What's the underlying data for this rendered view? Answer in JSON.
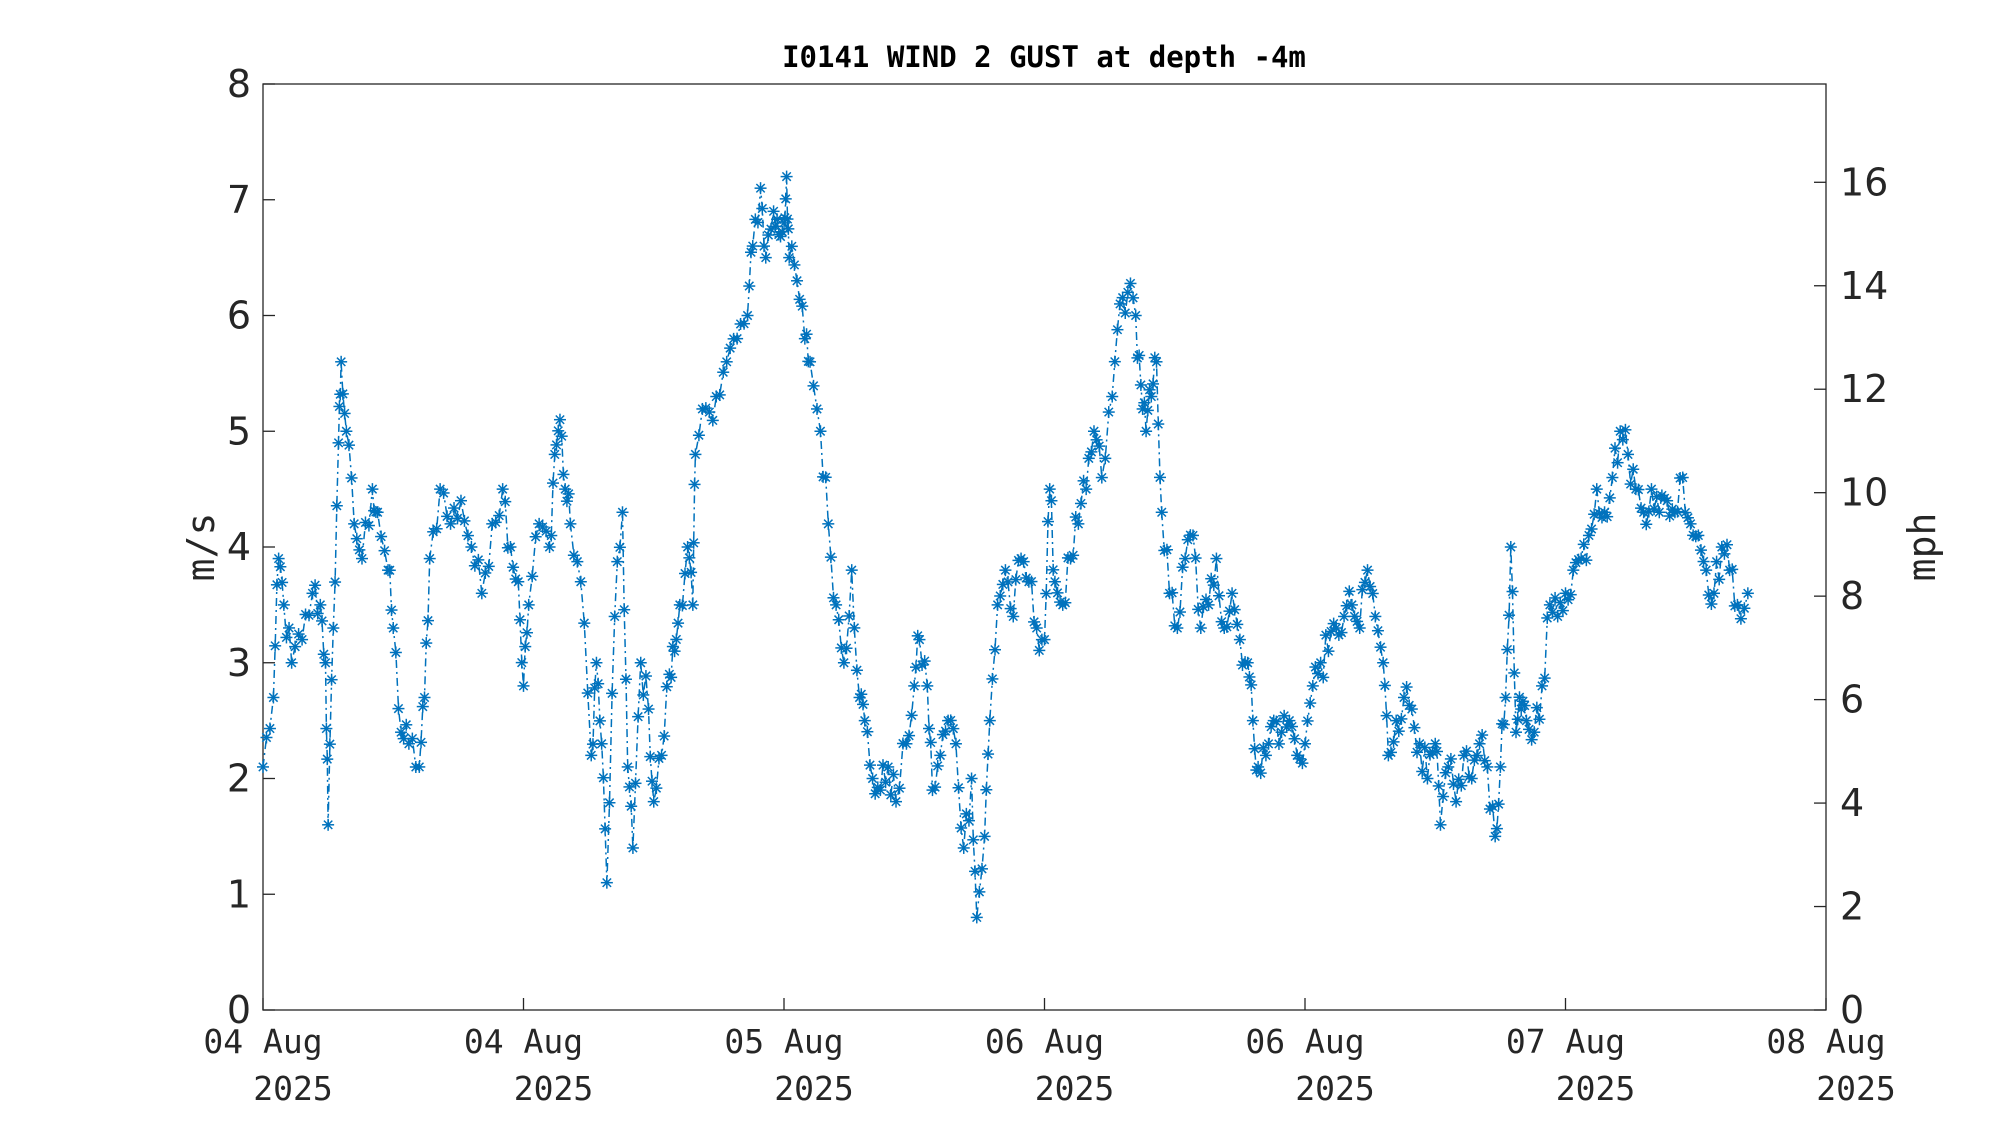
{
  "chart_data": {
    "type": "line",
    "title": "I0141 WIND 2 GUST at depth -4m",
    "ylabel": "m/s",
    "ylabel_right": "mph",
    "ylim": [
      0,
      8
    ],
    "ylim_right": [
      0,
      17.9
    ],
    "yticks": [
      "0",
      "1",
      "2",
      "3",
      "4",
      "5",
      "6",
      "7",
      "8"
    ],
    "yticks_right": [
      "0",
      "2",
      "4",
      "6",
      "8",
      "10",
      "12",
      "14",
      "16"
    ],
    "xlim_days": [
      0,
      6
    ],
    "xticks": [
      {
        "line1": "04 Aug",
        "line2": "2025"
      },
      {
        "line1": "04 Aug",
        "line2": "2025"
      },
      {
        "line1": "05 Aug",
        "line2": "2025"
      },
      {
        "line1": "06 Aug",
        "line2": "2025"
      },
      {
        "line1": "06 Aug",
        "line2": "2025"
      },
      {
        "line1": "07 Aug",
        "line2": "2025"
      },
      {
        "line1": "08 Aug",
        "line2": "2025"
      }
    ],
    "series_color": "#0072BD",
    "marker": "asterisk",
    "line_style": "dash-dot",
    "anchors": [
      [
        0.0,
        2.1
      ],
      [
        0.04,
        2.7
      ],
      [
        0.06,
        3.9
      ],
      [
        0.08,
        3.5
      ],
      [
        0.11,
        3.0
      ],
      [
        0.15,
        3.2
      ],
      [
        0.19,
        3.6
      ],
      [
        0.22,
        3.5
      ],
      [
        0.24,
        3.0
      ],
      [
        0.25,
        1.6
      ],
      [
        0.27,
        3.3
      ],
      [
        0.29,
        4.9
      ],
      [
        0.3,
        5.6
      ],
      [
        0.32,
        5.0
      ],
      [
        0.35,
        4.2
      ],
      [
        0.38,
        3.9
      ],
      [
        0.42,
        4.5
      ],
      [
        0.44,
        4.3
      ],
      [
        0.48,
        3.8
      ],
      [
        0.5,
        3.3
      ],
      [
        0.53,
        2.4
      ],
      [
        0.56,
        2.3
      ],
      [
        0.6,
        2.1
      ],
      [
        0.62,
        2.7
      ],
      [
        0.64,
        3.9
      ],
      [
        0.68,
        4.5
      ],
      [
        0.72,
        4.2
      ],
      [
        0.76,
        4.4
      ],
      [
        0.8,
        4.0
      ],
      [
        0.84,
        3.6
      ],
      [
        0.88,
        4.2
      ],
      [
        0.92,
        4.5
      ],
      [
        0.95,
        4.0
      ],
      [
        0.98,
        3.7
      ],
      [
        1.0,
        2.8
      ],
      [
        1.02,
        3.5
      ],
      [
        1.06,
        4.2
      ],
      [
        1.1,
        4.0
      ],
      [
        1.12,
        4.8
      ],
      [
        1.14,
        5.1
      ],
      [
        1.16,
        4.5
      ],
      [
        1.18,
        4.2
      ],
      [
        1.22,
        3.7
      ],
      [
        1.26,
        2.2
      ],
      [
        1.28,
        3.0
      ],
      [
        1.3,
        2.3
      ],
      [
        1.32,
        1.1
      ],
      [
        1.35,
        3.4
      ],
      [
        1.38,
        4.3
      ],
      [
        1.4,
        2.1
      ],
      [
        1.42,
        1.4
      ],
      [
        1.45,
        3.0
      ],
      [
        1.48,
        2.6
      ],
      [
        1.5,
        1.8
      ],
      [
        1.53,
        2.2
      ],
      [
        1.56,
        2.9
      ],
      [
        1.58,
        3.1
      ],
      [
        1.6,
        3.5
      ],
      [
        1.63,
        4.0
      ],
      [
        1.65,
        3.5
      ],
      [
        1.66,
        4.8
      ],
      [
        1.7,
        5.2
      ],
      [
        1.74,
        5.3
      ],
      [
        1.78,
        5.6
      ],
      [
        1.82,
        5.8
      ],
      [
        1.86,
        6.0
      ],
      [
        1.88,
        6.6
      ],
      [
        1.91,
        7.1
      ],
      [
        1.93,
        6.5
      ],
      [
        1.96,
        6.9
      ],
      [
        1.98,
        6.7
      ],
      [
        2.0,
        6.8
      ],
      [
        2.01,
        7.2
      ],
      [
        2.02,
        6.5
      ],
      [
        2.05,
        6.3
      ],
      [
        2.08,
        5.8
      ],
      [
        2.1,
        5.6
      ],
      [
        2.14,
        5.0
      ],
      [
        2.17,
        4.2
      ],
      [
        2.2,
        3.5
      ],
      [
        2.23,
        3.0
      ],
      [
        2.26,
        3.8
      ],
      [
        2.29,
        2.7
      ],
      [
        2.31,
        2.5
      ],
      [
        2.34,
        2.0
      ],
      [
        2.37,
        1.9
      ],
      [
        2.4,
        2.1
      ],
      [
        2.43,
        1.8
      ],
      [
        2.47,
        2.3
      ],
      [
        2.5,
        2.8
      ],
      [
        2.52,
        3.2
      ],
      [
        2.55,
        2.8
      ],
      [
        2.57,
        1.9
      ],
      [
        2.6,
        2.2
      ],
      [
        2.63,
        2.5
      ],
      [
        2.66,
        2.3
      ],
      [
        2.69,
        1.4
      ],
      [
        2.72,
        2.0
      ],
      [
        2.74,
        0.8
      ],
      [
        2.77,
        1.5
      ],
      [
        2.79,
        2.5
      ],
      [
        2.82,
        3.5
      ],
      [
        2.85,
        3.8
      ],
      [
        2.88,
        3.4
      ],
      [
        2.91,
        3.9
      ],
      [
        2.94,
        3.7
      ],
      [
        2.97,
        3.3
      ],
      [
        3.0,
        3.2
      ],
      [
        3.02,
        4.5
      ],
      [
        3.04,
        3.7
      ],
      [
        3.07,
        3.5
      ],
      [
        3.1,
        3.9
      ],
      [
        3.13,
        4.2
      ],
      [
        3.16,
        4.5
      ],
      [
        3.19,
        5.0
      ],
      [
        3.22,
        4.6
      ],
      [
        3.26,
        5.3
      ],
      [
        3.29,
        6.1
      ],
      [
        3.32,
        6.2
      ],
      [
        3.35,
        6.0
      ],
      [
        3.37,
        5.4
      ],
      [
        3.39,
        5.0
      ],
      [
        3.41,
        5.3
      ],
      [
        3.43,
        5.6
      ],
      [
        3.45,
        4.3
      ],
      [
        3.48,
        3.6
      ],
      [
        3.51,
        3.3
      ],
      [
        3.54,
        3.9
      ],
      [
        3.57,
        4.1
      ],
      [
        3.6,
        3.3
      ],
      [
        3.63,
        3.5
      ],
      [
        3.66,
        3.9
      ],
      [
        3.69,
        3.3
      ],
      [
        3.72,
        3.6
      ],
      [
        3.75,
        3.2
      ],
      [
        3.78,
        3.0
      ],
      [
        3.8,
        2.5
      ],
      [
        3.82,
        2.1
      ],
      [
        3.85,
        2.2
      ],
      [
        3.88,
        2.5
      ],
      [
        3.91,
        2.4
      ],
      [
        3.94,
        2.5
      ],
      [
        3.97,
        2.2
      ],
      [
        4.0,
        2.3
      ],
      [
        4.03,
        2.8
      ],
      [
        4.06,
        3.0
      ],
      [
        4.09,
        3.1
      ],
      [
        4.12,
        3.3
      ],
      [
        4.15,
        3.4
      ],
      [
        4.18,
        3.5
      ],
      [
        4.21,
        3.3
      ],
      [
        4.24,
        3.8
      ],
      [
        4.27,
        3.4
      ],
      [
        4.3,
        3.0
      ],
      [
        4.32,
        2.2
      ],
      [
        4.35,
        2.5
      ],
      [
        4.38,
        2.7
      ],
      [
        4.41,
        2.6
      ],
      [
        4.44,
        2.3
      ],
      [
        4.47,
        2.0
      ],
      [
        4.5,
        2.3
      ],
      [
        4.52,
        1.6
      ],
      [
        4.55,
        2.1
      ],
      [
        4.58,
        1.8
      ],
      [
        4.61,
        2.2
      ],
      [
        4.64,
        2.0
      ],
      [
        4.67,
        2.3
      ],
      [
        4.7,
        2.1
      ],
      [
        4.73,
        1.5
      ],
      [
        4.75,
        2.1
      ],
      [
        4.77,
        2.7
      ],
      [
        4.79,
        4.0
      ],
      [
        4.81,
        2.4
      ],
      [
        4.83,
        2.6
      ],
      [
        4.85,
        2.5
      ],
      [
        4.88,
        2.4
      ],
      [
        4.91,
        2.8
      ],
      [
        4.94,
        3.5
      ],
      [
        4.97,
        3.4
      ],
      [
        5.0,
        3.6
      ],
      [
        5.03,
        3.8
      ],
      [
        5.06,
        3.9
      ],
      [
        5.09,
        4.1
      ],
      [
        5.12,
        4.5
      ],
      [
        5.15,
        4.3
      ],
      [
        5.18,
        4.6
      ],
      [
        5.21,
        5.0
      ],
      [
        5.24,
        4.8
      ],
      [
        5.27,
        4.5
      ],
      [
        5.3,
        4.3
      ],
      [
        5.33,
        4.5
      ],
      [
        5.36,
        4.3
      ],
      [
        5.39,
        4.4
      ],
      [
        5.42,
        4.3
      ],
      [
        5.45,
        4.6
      ],
      [
        5.48,
        4.2
      ],
      [
        5.51,
        4.1
      ],
      [
        5.54,
        3.8
      ],
      [
        5.57,
        3.6
      ],
      [
        5.6,
        4.0
      ],
      [
        5.63,
        3.8
      ],
      [
        5.66,
        3.5
      ],
      [
        5.7,
        3.6
      ]
    ]
  }
}
